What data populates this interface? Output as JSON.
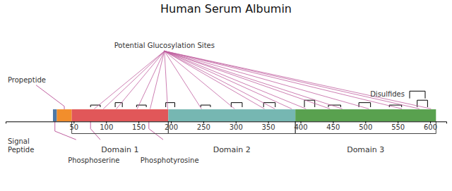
{
  "chart_data": {
    "type": "protein_map",
    "title": "Human Serum Albumin",
    "xlim": [
      -55,
      625
    ],
    "xticks": [
      50,
      100,
      150,
      200,
      250,
      300,
      350,
      400,
      450,
      500,
      550,
      600
    ],
    "sequence_start": 18,
    "sequence_end": 609,
    "signal_peptide_end": 24,
    "propeptide_end": 47,
    "signal_peptide_label": "Signal\nPeptide",
    "propeptide_label": "Propeptide",
    "domains": [
      {
        "name": "Domain 1",
        "start": 47,
        "end": 196
      },
      {
        "name": "Domain 2",
        "start": 196,
        "end": 392
      },
      {
        "name": "Domain 3",
        "start": 392,
        "end": 609
      }
    ],
    "glucosylation_label": "Potential Glucosylation Sites",
    "glucosylation_label_x": 190,
    "glucosylation_sites": [
      82,
      96,
      116,
      148,
      168,
      195,
      247,
      298,
      344,
      360,
      386,
      408,
      445,
      464,
      505,
      556,
      583,
      601
    ],
    "disulfide_label": "Disulfides",
    "disulfide_pairs": [
      [
        76,
        91
      ],
      [
        114,
        125
      ],
      [
        147,
        162
      ],
      [
        192,
        206
      ],
      [
        246,
        261
      ],
      [
        293,
        310
      ],
      [
        343,
        361
      ],
      [
        406,
        422
      ],
      [
        443,
        462
      ],
      [
        490,
        508
      ],
      [
        537,
        556
      ],
      [
        580,
        596
      ]
    ],
    "phosphoserine_label": "Phosphoserine",
    "phosphoserine": 76,
    "phosphotyrosine_label": "Phosphotyrosine",
    "phosphotyrosine": 166,
    "annotation_color": "#c060a0",
    "line_color": "#444444"
  }
}
